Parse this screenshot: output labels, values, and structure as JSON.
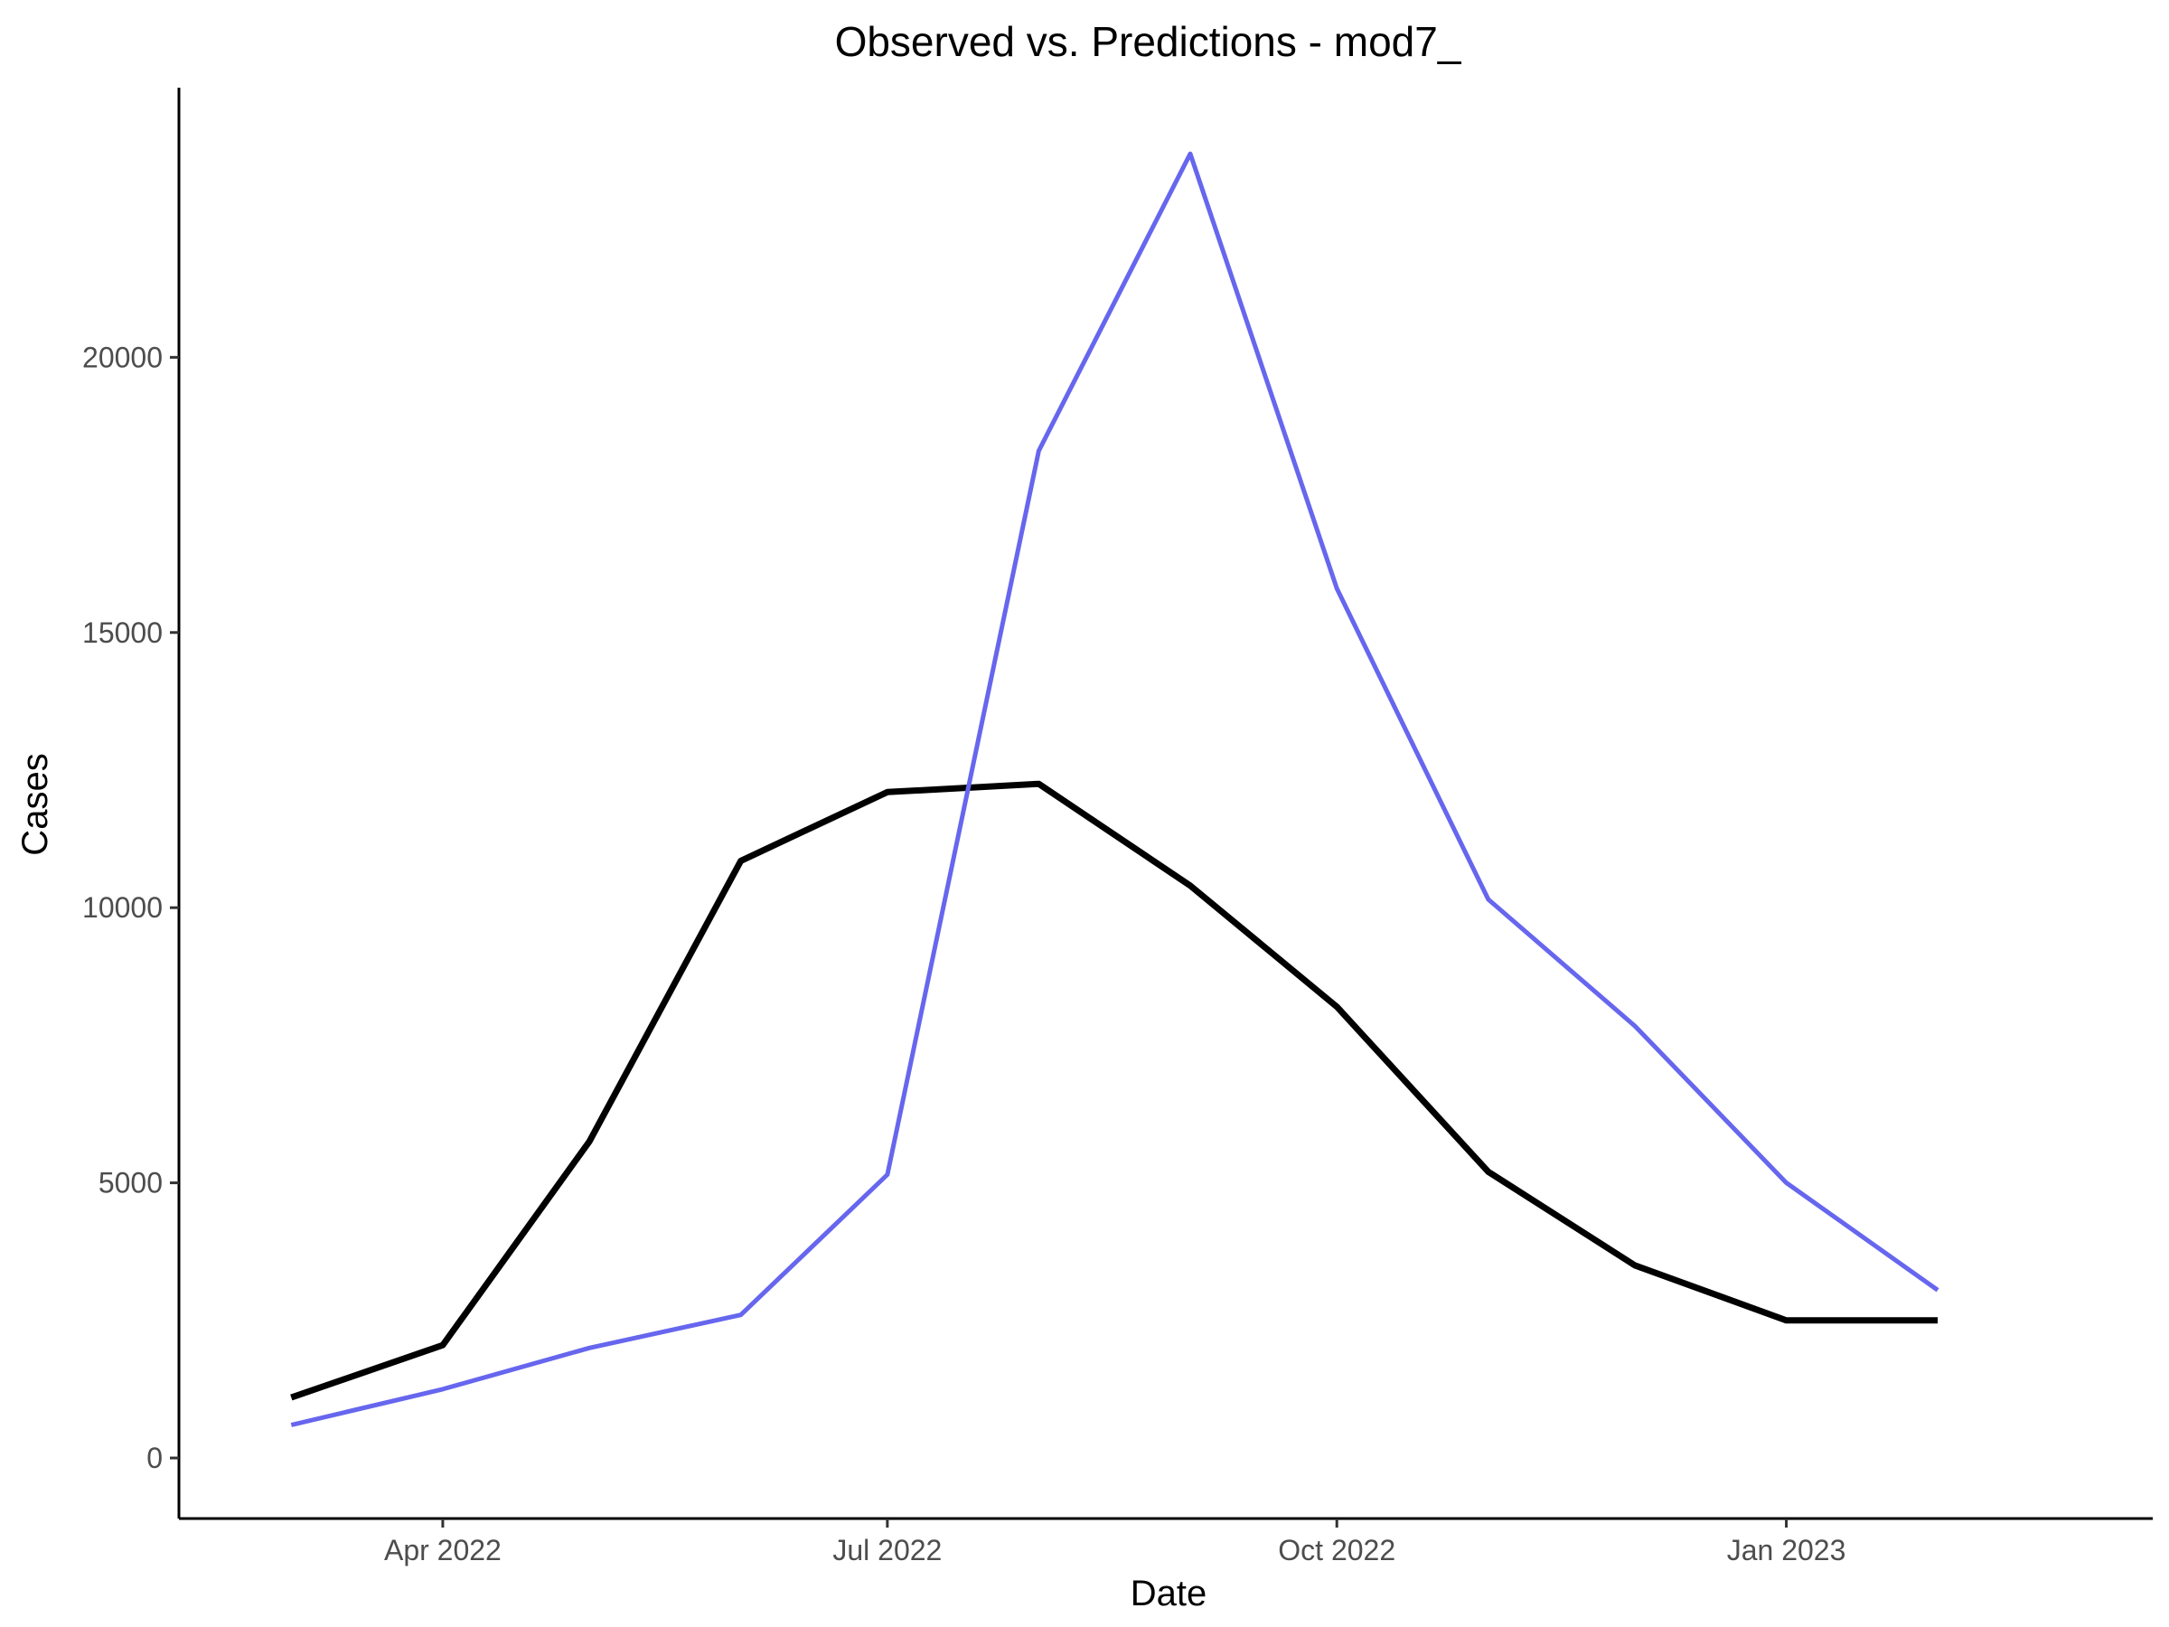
{
  "chart_data": {
    "type": "line",
    "title": "Observed vs. Predictions - mod7_",
    "xlabel": "Date",
    "ylabel": "Cases",
    "x": [
      "2022-03-01",
      "2022-04-01",
      "2022-05-01",
      "2022-06-01",
      "2022-07-01",
      "2022-08-01",
      "2022-09-01",
      "2022-10-01",
      "2022-11-01",
      "2022-12-01",
      "2023-01-01",
      "2023-02-01"
    ],
    "xlim": [
      "2022-02-06",
      "2023-03-17"
    ],
    "x_ticks": [
      {
        "date": "2022-04-01",
        "label": "Apr 2022"
      },
      {
        "date": "2022-07-01",
        "label": "Jul 2022"
      },
      {
        "date": "2022-10-01",
        "label": "Oct 2022"
      },
      {
        "date": "2023-01-01",
        "label": "Jan 2023"
      }
    ],
    "ylim": [
      -1100,
      24900
    ],
    "y_ticks": [
      {
        "value": 0,
        "label": "0"
      },
      {
        "value": 5000,
        "label": "5000"
      },
      {
        "value": 10000,
        "label": "10000"
      },
      {
        "value": 15000,
        "label": "15000"
      },
      {
        "value": 20000,
        "label": "20000"
      }
    ],
    "grid": false,
    "legend": "none",
    "series": [
      {
        "color": "#000000",
        "values": [
          1100,
          2050,
          5750,
          10850,
          12100,
          12250,
          10400,
          8200,
          5200,
          3500,
          2500,
          2500
        ]
      },
      {
        "color": "#6666ee",
        "values": [
          600,
          1250,
          2000,
          2600,
          5150,
          18300,
          23700,
          15800,
          10150,
          7850,
          5000,
          3050
        ]
      }
    ]
  }
}
